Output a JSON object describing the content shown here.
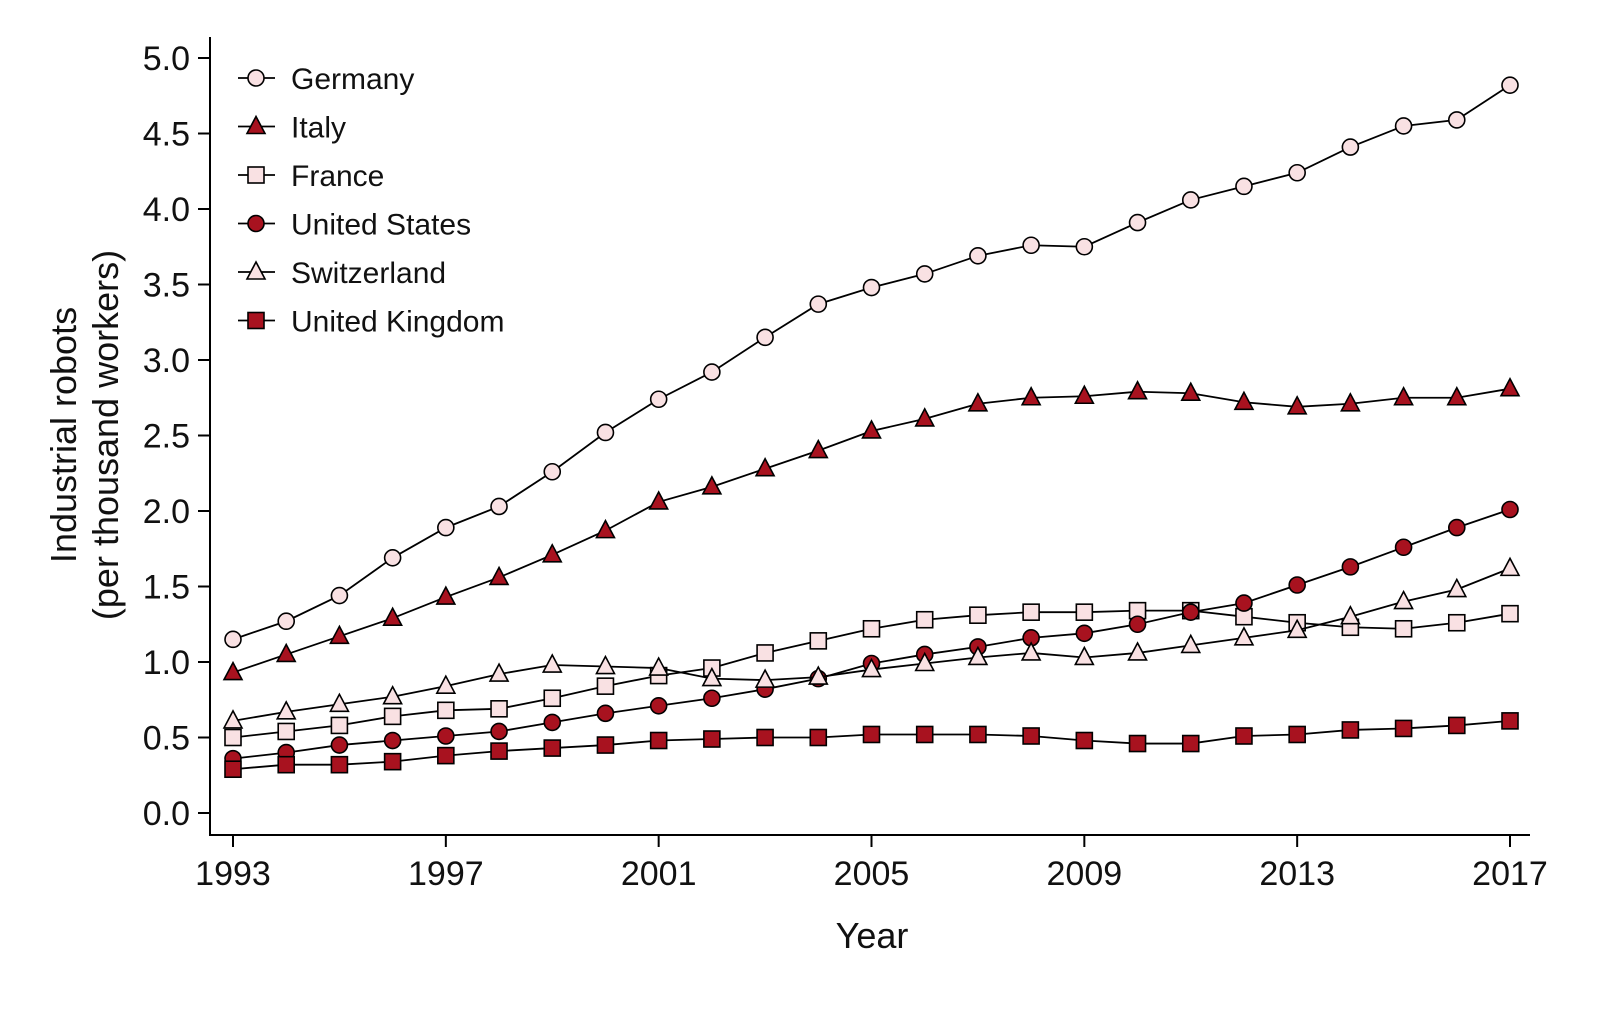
{
  "chart_data": {
    "type": "line",
    "xlabel": "Year",
    "ylabel": "Industrial robots",
    "ylabel_line2": "(per thousand workers)",
    "xlim": [
      1993,
      2017
    ],
    "ylim": [
      0.0,
      5.0
    ],
    "x_ticks": [
      "1993",
      "1997",
      "2001",
      "2005",
      "2009",
      "2013",
      "2017"
    ],
    "y_ticks": [
      "0.0",
      "0.5",
      "1.0",
      "1.5",
      "2.0",
      "2.5",
      "3.0",
      "3.5",
      "4.0",
      "4.5",
      "5.0"
    ],
    "grid": false,
    "legend_position": "top-left",
    "x": [
      1993,
      1994,
      1995,
      1996,
      1997,
      1998,
      1999,
      2000,
      2001,
      2002,
      2003,
      2004,
      2005,
      2006,
      2007,
      2008,
      2009,
      2010,
      2011,
      2012,
      2013,
      2014,
      2015,
      2016,
      2017
    ],
    "series": [
      {
        "name": "Germany",
        "marker": "circle",
        "fill": "#f9e1e3",
        "values": [
          1.15,
          1.27,
          1.44,
          1.69,
          1.89,
          2.03,
          2.26,
          2.52,
          2.74,
          2.92,
          3.15,
          3.37,
          3.48,
          3.57,
          3.69,
          3.76,
          3.75,
          3.91,
          4.06,
          4.15,
          4.24,
          4.41,
          4.55,
          4.59,
          4.82
        ]
      },
      {
        "name": "Italy",
        "marker": "triangle",
        "fill": "#a8121f",
        "values": [
          0.93,
          1.05,
          1.17,
          1.29,
          1.43,
          1.56,
          1.71,
          1.87,
          2.06,
          2.16,
          2.28,
          2.4,
          2.53,
          2.61,
          2.71,
          2.75,
          2.76,
          2.79,
          2.78,
          2.72,
          2.69,
          2.71,
          2.75,
          2.75,
          2.81
        ]
      },
      {
        "name": "France",
        "marker": "square",
        "fill": "#f9e1e3",
        "values": [
          0.5,
          0.54,
          0.58,
          0.64,
          0.68,
          0.69,
          0.76,
          0.84,
          0.91,
          0.96,
          1.06,
          1.14,
          1.22,
          1.28,
          1.31,
          1.33,
          1.33,
          1.34,
          1.34,
          1.3,
          1.26,
          1.23,
          1.22,
          1.26,
          1.32
        ]
      },
      {
        "name": "United States",
        "marker": "circle",
        "fill": "#a8121f",
        "values": [
          0.36,
          0.4,
          0.45,
          0.48,
          0.51,
          0.54,
          0.6,
          0.66,
          0.71,
          0.76,
          0.82,
          0.89,
          0.99,
          1.05,
          1.1,
          1.16,
          1.19,
          1.25,
          1.33,
          1.39,
          1.51,
          1.63,
          1.76,
          1.89,
          2.01
        ]
      },
      {
        "name": "Switzerland",
        "marker": "triangle",
        "fill": "#f9e1e3",
        "values": [
          0.61,
          0.67,
          0.72,
          0.77,
          0.84,
          0.92,
          0.98,
          0.97,
          0.96,
          0.89,
          0.88,
          0.9,
          0.95,
          0.99,
          1.03,
          1.06,
          1.03,
          1.06,
          1.11,
          1.16,
          1.21,
          1.3,
          1.4,
          1.48,
          1.62
        ]
      },
      {
        "name": "United Kingdom",
        "marker": "square",
        "fill": "#a8121f",
        "values": [
          0.29,
          0.32,
          0.32,
          0.34,
          0.38,
          0.41,
          0.43,
          0.45,
          0.48,
          0.49,
          0.5,
          0.5,
          0.52,
          0.52,
          0.52,
          0.51,
          0.48,
          0.46,
          0.46,
          0.51,
          0.52,
          0.55,
          0.56,
          0.58,
          0.61
        ]
      }
    ]
  }
}
